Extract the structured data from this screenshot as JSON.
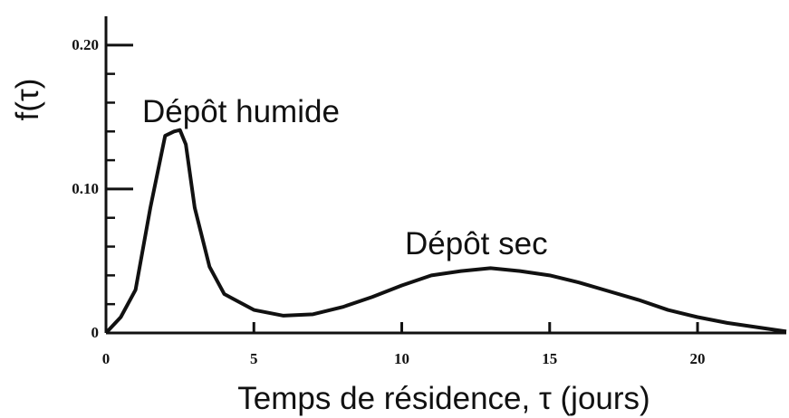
{
  "chart_data": {
    "type": "line",
    "ylabel": "f(τ)",
    "xlabel": "Temps de résidence, τ (jours)",
    "annotations": [
      "Dépôt humide",
      "Dépôt sec"
    ],
    "x": [
      0,
      0.5,
      1,
      1.5,
      2,
      2.3,
      2.5,
      2.7,
      3,
      3.5,
      4,
      5,
      6,
      7,
      8,
      9,
      10,
      11,
      12,
      13,
      14,
      15,
      16,
      17,
      18,
      19,
      20,
      21,
      22,
      23
    ],
    "series": [
      {
        "color": "#111111",
        "values": [
          0,
          0.011,
          0.03,
          0.087,
          0.137,
          0.14,
          0.141,
          0.131,
          0.087,
          0.046,
          0.027,
          0.016,
          0.012,
          0.013,
          0.018,
          0.025,
          0.033,
          0.04,
          0.043,
          0.045,
          0.043,
          0.04,
          0.035,
          0.029,
          0.023,
          0.016,
          0.011,
          0.007,
          0.004,
          0.001
        ]
      }
    ],
    "xlim": [
      0,
      23
    ],
    "ylim": [
      0,
      0.22
    ],
    "xticks": [
      0,
      5,
      10,
      15,
      20
    ],
    "yticks": [
      0,
      {
        "value": 0.1,
        "label": "0.10"
      },
      {
        "value": 0.2,
        "label": "0.20"
      }
    ],
    "yminor_ticks": [
      0.02,
      0.04,
      0.06,
      0.08,
      0.12,
      0.14,
      0.16,
      0.18
    ]
  }
}
